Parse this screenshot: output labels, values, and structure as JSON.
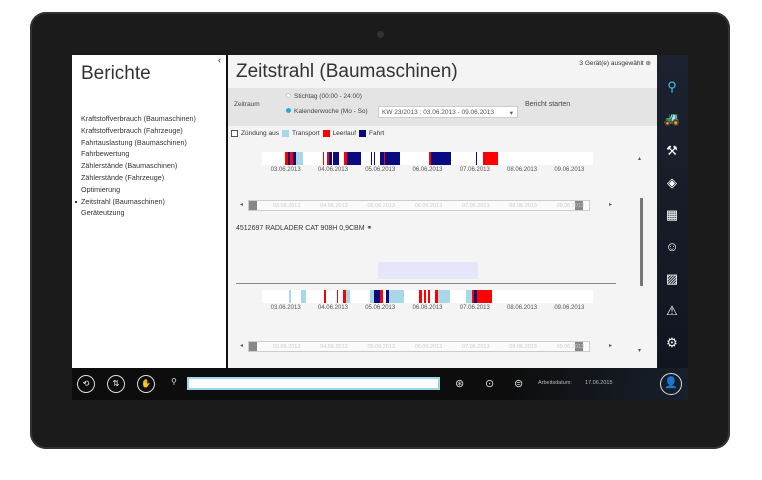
{
  "sidebar": {
    "title": "Berichte",
    "items": [
      {
        "label": "Kraftstoffverbrauch (Baumaschinen)"
      },
      {
        "label": "Kraftstoffverbrauch (Fahrzeuge)"
      },
      {
        "label": "Fahrtauslastung (Baumaschinen)"
      },
      {
        "label": "Fahrbewertung"
      },
      {
        "label": "Zählerstände (Baumaschinen)"
      },
      {
        "label": "Zählerstände (Fahrzeuge)"
      },
      {
        "label": "Optimierung"
      },
      {
        "label": "Zeitstrahl (Baumaschinen)",
        "active": true
      },
      {
        "label": "Geräteutzung"
      }
    ]
  },
  "header": {
    "title": "Zeitstrahl (Baumaschinen)",
    "devices_selected": "3 Gerät(e) ausgewählt"
  },
  "filter": {
    "label": "Zeitraum",
    "option_day": "Stichtag (00:00 - 24:00)",
    "option_week": "Kalenderwoche (Mo - So)",
    "selected": "week",
    "week_value": "KW 23/2013 : 03.06.2013 - 09.06.2013",
    "start_label": "Bericht starten"
  },
  "legend": {
    "ignition_off": "Zündung aus",
    "items": [
      {
        "label": "Transport",
        "color": "#a8d8e8"
      },
      {
        "label": "Leerlauf",
        "color": "#ff0000"
      },
      {
        "label": "Fahrt",
        "color": "#0a0a80"
      }
    ]
  },
  "device": {
    "name": "4512697 RADLADER CAT 908H 0,9CBM"
  },
  "chart_data": {
    "type": "timeline",
    "days": [
      "03.06.2013",
      "04.06.2013",
      "05.06.2013",
      "06.06.2013",
      "07.06.2013",
      "08.06.2013",
      "09.06.2013"
    ],
    "series": [
      {
        "segments": [
          [
            "03.06.2013",
            "11:31",
            "13:12",
            "Leerlauf"
          ],
          [
            "03.06.2013",
            "13:12",
            "14:24",
            "Fahrt"
          ],
          [
            "03.06.2013",
            "14:24",
            "15:50",
            "Leerlauf"
          ],
          [
            "03.06.2013",
            "15:50",
            "17:17",
            "Fahrt"
          ],
          [
            "03.06.2013",
            "17:17",
            "20:38",
            "Transport"
          ],
          [
            "04.06.2013",
            "07:12",
            "07:41",
            "Leerlauf"
          ],
          [
            "04.06.2013",
            "09:07",
            "09:50",
            "Leerlauf"
          ],
          [
            "04.06.2013",
            "09:50",
            "11:46",
            "Fahrt"
          ],
          [
            "04.06.2013",
            "12:00",
            "14:53",
            "Fahrt"
          ],
          [
            "04.06.2013",
            "17:46",
            "19:12",
            "Leerlauf"
          ],
          [
            "04.06.2013",
            "19:12",
            "24:00",
            "Fahrt"
          ],
          [
            "05.06.2013",
            "00:00",
            "02:24",
            "Fahrt"
          ],
          [
            "05.06.2013",
            "07:26",
            "07:41",
            "Fahrt"
          ],
          [
            "05.06.2013",
            "08:53",
            "09:07",
            "Fahrt"
          ],
          [
            "05.06.2013",
            "12:00",
            "13:41",
            "Fahrt"
          ],
          [
            "05.06.2013",
            "13:41",
            "14:24",
            "Leerlauf"
          ],
          [
            "05.06.2013",
            "14:24",
            "22:05",
            "Fahrt"
          ],
          [
            "06.06.2013",
            "12:58",
            "13:55",
            "Leerlauf"
          ],
          [
            "06.06.2013",
            "13:55",
            "24:00",
            "Fahrt"
          ],
          [
            "07.06.2013",
            "12:29",
            "12:43",
            "Fahrt"
          ],
          [
            "07.06.2013",
            "16:19",
            "23:46",
            "Leerlauf"
          ]
        ]
      },
      {
        "device": "4512697 RADLADER CAT 908H 0,9CBM",
        "segments": [
          [
            "03.06.2013",
            "13:55",
            "14:38",
            "Transport"
          ],
          [
            "03.06.2013",
            "19:41",
            "22:34",
            "Transport"
          ],
          [
            "04.06.2013",
            "07:41",
            "08:24",
            "Leerlauf"
          ],
          [
            "04.06.2013",
            "13:55",
            "14:38",
            "Leerlauf"
          ],
          [
            "04.06.2013",
            "17:02",
            "18:29",
            "Leerlauf"
          ],
          [
            "04.06.2013",
            "18:29",
            "20:53",
            "Transport"
          ],
          [
            "05.06.2013",
            "06:43",
            "08:53",
            "Transport"
          ],
          [
            "05.06.2013",
            "08:53",
            "12:00",
            "Fahrt"
          ],
          [
            "05.06.2013",
            "12:00",
            "13:12",
            "Leerlauf"
          ],
          [
            "05.06.2013",
            "14:53",
            "16:19",
            "Fahrt"
          ],
          [
            "05.06.2013",
            "16:19",
            "24:00",
            "Transport"
          ],
          [
            "06.06.2013",
            "07:55",
            "09:07",
            "Leerlauf"
          ],
          [
            "06.06.2013",
            "10:05",
            "11:02",
            "Leerlauf"
          ],
          [
            "06.06.2013",
            "12:00",
            "13:26",
            "Leerlauf"
          ],
          [
            "06.06.2013",
            "15:50",
            "17:17",
            "Leerlauf"
          ],
          [
            "06.06.2013",
            "17:17",
            "23:31",
            "Transport"
          ],
          [
            "07.06.2013",
            "07:26",
            "10:34",
            "Transport"
          ],
          [
            "07.06.2013",
            "10:34",
            "11:46",
            "Leerlauf"
          ],
          [
            "07.06.2013",
            "11:46",
            "12:58",
            "Fahrt"
          ],
          [
            "07.06.2013",
            "12:58",
            "20:38",
            "Leerlauf"
          ]
        ]
      }
    ]
  },
  "right_nav": [
    {
      "icon": "map-pin-icon",
      "active": true
    },
    {
      "icon": "tractor-icon"
    },
    {
      "icon": "excavator-icon"
    },
    {
      "icon": "navigation-icon"
    },
    {
      "icon": "grid-icon"
    },
    {
      "icon": "driver-icon"
    },
    {
      "icon": "image-icon"
    },
    {
      "icon": "warning-icon"
    },
    {
      "icon": "settings-icon"
    }
  ],
  "bottom": {
    "work_date_label": "Arbeitsdatum:",
    "work_date": "17.06.2015",
    "search_value": ""
  }
}
